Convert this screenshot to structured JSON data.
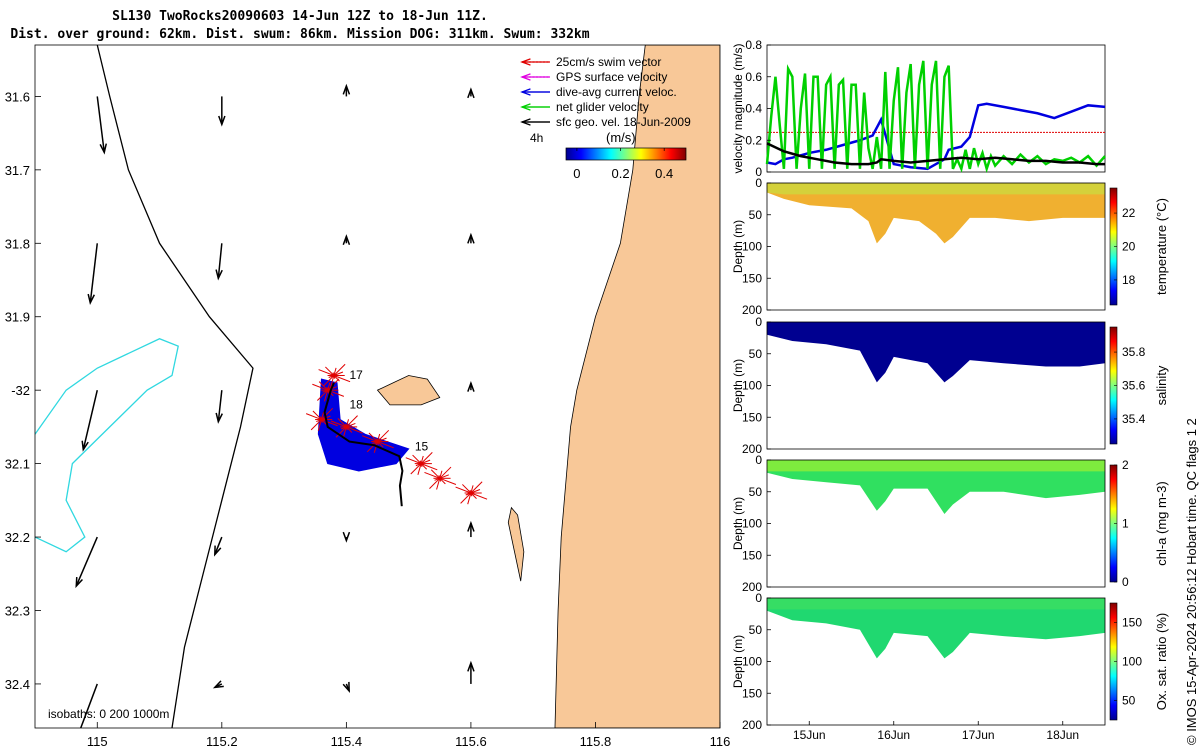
{
  "title": {
    "line1": "SL130 TwoRocks20090603 14-Jun 12Z to 18-Jun 11Z.",
    "line2": "Dist. over ground: 62km. Dist. swum: 86km. Mission DOG: 311km. Swum: 332km"
  },
  "copyright": "© IMOS 15-Apr-2024 20:56:12 Hobart time. QC flags 1  2",
  "colors": {
    "land": "#f8c898",
    "arrow": "#000000",
    "isobath0": "#000000",
    "isobath200": "#30d8e0",
    "swim": "#e00000",
    "dive_avg": "#0000e0",
    "net": "#00d000",
    "track": "#000000"
  },
  "chart_data": [
    {
      "type": "map",
      "name": "track-map",
      "xlim": [
        114.9,
        116
      ],
      "ylim": [
        -32.46,
        -31.53
      ],
      "x_ticks": [
        115,
        115.2,
        115.4,
        115.6,
        115.8,
        116
      ],
      "x_tick_labels": [
        "115",
        "115.2",
        "115.4",
        "115.6",
        "115.8",
        "116"
      ],
      "y_ticks": [
        -31.6,
        -31.7,
        -31.8,
        -31.9,
        -32.0,
        -32.1,
        -32.2,
        -32.3,
        -32.4
      ],
      "y_tick_labels": [
        "31.6",
        "31.7",
        "31.8",
        "31.9",
        "-32",
        "32.1",
        "32.2",
        "32.3",
        "32.4"
      ],
      "legend": [
        {
          "label": "25cm/s swim vector",
          "color": "#e00000",
          "style": "dotted"
        },
        {
          "label": "GPS surface velocity",
          "color": "#e000e0",
          "style": "dotted"
        },
        {
          "label": "dive-avg current veloc.",
          "color": "#0000e0",
          "style": "solid"
        },
        {
          "label": "net glider velocity",
          "color": "#00d000",
          "style": "solid"
        },
        {
          "label": "sfc geo. vel. 18-Jun-2009",
          "color": "#000000",
          "style": "solid"
        }
      ],
      "scale_label": "4h",
      "colorbar": {
        "label": "(m/s)",
        "ticks": [
          "0",
          "0.2",
          "0.4"
        ],
        "range": [
          -0.05,
          0.5
        ]
      },
      "isobaths_label": "isobaths: 0   200  1000m",
      "track": [
        [
          115.489,
          -32.158
        ],
        [
          115.486,
          -32.13
        ],
        [
          115.49,
          -32.11
        ],
        [
          115.485,
          -32.09
        ],
        [
          115.445,
          -32.075
        ],
        [
          115.405,
          -32.07
        ],
        [
          115.37,
          -32.05
        ],
        [
          115.365,
          -32.03
        ],
        [
          115.375,
          -32.0
        ],
        [
          115.38,
          -31.99
        ]
      ],
      "day_labels": [
        {
          "text": "17",
          "lon": 115.405,
          "lat": -31.985
        },
        {
          "text": "18",
          "lon": 115.405,
          "lat": -32.025
        },
        {
          "text": "15",
          "lon": 115.51,
          "lat": -32.082
        }
      ],
      "sfc_vectors": [
        {
          "lon": 115.0,
          "lat": -31.6,
          "u": 0.01,
          "v": -0.08
        },
        {
          "lon": 115.2,
          "lat": -31.6,
          "u": 0.0,
          "v": -0.04
        },
        {
          "lon": 115.4,
          "lat": -31.6,
          "u": 0.0,
          "v": 0.015
        },
        {
          "lon": 115.6,
          "lat": -31.6,
          "u": 0.0,
          "v": 0.01
        },
        {
          "lon": 115.0,
          "lat": -31.8,
          "u": -0.01,
          "v": -0.085
        },
        {
          "lon": 115.2,
          "lat": -31.8,
          "u": -0.005,
          "v": -0.05
        },
        {
          "lon": 115.4,
          "lat": -31.8,
          "u": 0.0,
          "v": 0.01
        },
        {
          "lon": 115.6,
          "lat": -31.8,
          "u": 0.0,
          "v": 0.012
        },
        {
          "lon": 115.0,
          "lat": -32.0,
          "u": -0.02,
          "v": -0.085
        },
        {
          "lon": 115.2,
          "lat": -32.0,
          "u": -0.005,
          "v": -0.045
        },
        {
          "lon": 115.4,
          "lat": -32.2,
          "u": 0.0,
          "v": -0.005
        },
        {
          "lon": 115.6,
          "lat": -32.2,
          "u": 0.0,
          "v": 0.02
        },
        {
          "lon": 115.0,
          "lat": -32.2,
          "u": -0.03,
          "v": -0.07
        },
        {
          "lon": 115.2,
          "lat": -32.2,
          "u": -0.01,
          "v": -0.025
        },
        {
          "lon": 115.4,
          "lat": -32.4,
          "u": 0.004,
          "v": -0.01
        },
        {
          "lon": 115.6,
          "lat": -32.4,
          "u": 0.0,
          "v": 0.03
        },
        {
          "lon": 115.0,
          "lat": -32.4,
          "u": -0.03,
          "v": -0.08
        },
        {
          "lon": 115.2,
          "lat": -32.4,
          "u": -0.01,
          "v": -0.005
        },
        {
          "lon": 115.6,
          "lat": -32.0,
          "u": 0.0,
          "v": 0.01
        }
      ],
      "coastline": [
        [
          115.88,
          -31.53
        ],
        [
          115.87,
          -31.6
        ],
        [
          115.86,
          -31.7
        ],
        [
          115.84,
          -31.8
        ],
        [
          115.8,
          -31.9
        ],
        [
          115.77,
          -32.0
        ],
        [
          115.76,
          -32.05
        ],
        [
          115.755,
          -32.1
        ],
        [
          115.745,
          -32.2
        ],
        [
          115.74,
          -32.3
        ],
        [
          115.735,
          -32.46
        ]
      ],
      "islands": [
        {
          "name": "rottnest",
          "points": [
            [
              115.45,
              -32.0
            ],
            [
              115.5,
              -31.98
            ],
            [
              115.53,
              -31.985
            ],
            [
              115.55,
              -32.01
            ],
            [
              115.52,
              -32.02
            ],
            [
              115.47,
              -32.02
            ]
          ]
        },
        {
          "name": "garden",
          "points": [
            [
              115.665,
              -32.16
            ],
            [
              115.675,
              -32.17
            ],
            [
              115.685,
              -32.22
            ],
            [
              115.68,
              -32.26
            ],
            [
              115.67,
              -32.22
            ],
            [
              115.66,
              -32.18
            ]
          ]
        }
      ],
      "isobath_0": [
        [
          115.0,
          -31.53
        ],
        [
          115.02,
          -31.6
        ],
        [
          115.05,
          -31.7
        ],
        [
          115.1,
          -31.8
        ],
        [
          115.18,
          -31.9
        ],
        [
          115.25,
          -31.97
        ],
        [
          115.23,
          -32.05
        ],
        [
          115.2,
          -32.15
        ],
        [
          115.17,
          -32.25
        ],
        [
          115.14,
          -32.35
        ],
        [
          115.12,
          -32.46
        ]
      ],
      "isobath_200": [
        [
          114.9,
          -32.06
        ],
        [
          114.95,
          -32.0
        ],
        [
          115.0,
          -31.97
        ],
        [
          115.05,
          -31.95
        ],
        [
          115.1,
          -31.93
        ],
        [
          115.13,
          -31.94
        ],
        [
          115.12,
          -31.98
        ],
        [
          115.08,
          -32.0
        ],
        [
          115.02,
          -32.05
        ],
        [
          114.96,
          -32.1
        ],
        [
          114.95,
          -32.15
        ],
        [
          114.98,
          -32.2
        ],
        [
          114.95,
          -32.22
        ],
        [
          114.9,
          -32.2
        ]
      ]
    },
    {
      "type": "line",
      "name": "velocity-magnitude",
      "ylabel": "velocity magnitude (m/s)",
      "ylim": [
        0,
        0.8
      ],
      "y_ticks": [
        0,
        0.2,
        0.4,
        0.6,
        0.8
      ],
      "y_tick_labels": [
        "0",
        "0.2",
        "0.4",
        "0.6",
        "0.8"
      ],
      "xlim": [
        14.5,
        18.5
      ],
      "series": [
        {
          "name": "swim vector",
          "color": "#e00000",
          "style": "dotted",
          "x": [
            14.5,
            18.5
          ],
          "y": [
            0.25,
            0.25
          ]
        },
        {
          "name": "dive-avg current",
          "color": "#0000e0",
          "x": [
            14.5,
            14.6,
            14.7,
            14.8,
            15.0,
            15.2,
            15.4,
            15.6,
            15.75,
            15.8,
            15.85,
            16.0,
            16.2,
            16.4,
            16.5,
            16.6,
            16.65,
            16.8,
            16.9,
            17.0,
            17.1,
            17.3,
            17.5,
            17.7,
            17.9,
            18.1,
            18.3,
            18.5
          ],
          "y": [
            0.06,
            0.05,
            0.08,
            0.09,
            0.12,
            0.14,
            0.17,
            0.2,
            0.23,
            0.28,
            0.33,
            0.05,
            0.03,
            0.02,
            0.05,
            0.08,
            0.14,
            0.16,
            0.22,
            0.42,
            0.43,
            0.41,
            0.39,
            0.37,
            0.34,
            0.38,
            0.42,
            0.41
          ]
        },
        {
          "name": "net glider velocity",
          "color": "#00d000",
          "x": [
            14.5,
            14.55,
            14.6,
            14.65,
            14.7,
            14.75,
            14.8,
            14.85,
            14.9,
            14.95,
            15.0,
            15.05,
            15.1,
            15.15,
            15.2,
            15.25,
            15.3,
            15.35,
            15.4,
            15.45,
            15.5,
            15.55,
            15.6,
            15.65,
            15.7,
            15.75,
            15.8,
            15.85,
            15.9,
            15.95,
            16.0,
            16.05,
            16.1,
            16.15,
            16.2,
            16.25,
            16.3,
            16.35,
            16.4,
            16.45,
            16.5,
            16.55,
            16.6,
            16.65,
            16.7,
            16.75,
            16.8,
            16.85,
            16.9,
            16.95,
            17.0,
            17.05,
            17.1,
            17.15,
            17.2,
            17.3,
            17.4,
            17.5,
            17.6,
            17.7,
            17.8,
            17.9,
            18.0,
            18.1,
            18.2,
            18.3,
            18.4,
            18.5
          ],
          "y": [
            0.05,
            0.35,
            0.6,
            0.3,
            0.02,
            0.65,
            0.6,
            0.02,
            0.4,
            0.62,
            0.02,
            0.6,
            0.6,
            0.02,
            0.55,
            0.6,
            0.02,
            0.55,
            0.58,
            0.02,
            0.55,
            0.55,
            0.02,
            0.5,
            0.15,
            0.02,
            0.22,
            0.02,
            0.63,
            0.02,
            0.45,
            0.66,
            0.02,
            0.5,
            0.68,
            0.02,
            0.55,
            0.7,
            0.02,
            0.55,
            0.7,
            0.02,
            0.6,
            0.67,
            0.02,
            0.08,
            0.02,
            0.14,
            0.02,
            0.15,
            0.05,
            0.12,
            0.02,
            0.1,
            0.04,
            0.1,
            0.05,
            0.11,
            0.06,
            0.1,
            0.05,
            0.08,
            0.07,
            0.09,
            0.06,
            0.1,
            0.04,
            0.1
          ]
        },
        {
          "name": "sfc geo. vel.",
          "color": "#000000",
          "x": [
            14.5,
            14.7,
            14.9,
            15.1,
            15.3,
            15.5,
            15.7,
            15.8,
            15.85,
            16.0,
            16.2,
            16.4,
            16.6,
            16.8,
            17.0,
            17.2,
            17.4,
            17.6,
            17.8,
            18.0,
            18.2,
            18.4,
            18.5
          ],
          "y": [
            0.18,
            0.13,
            0.1,
            0.08,
            0.06,
            0.05,
            0.05,
            0.06,
            0.08,
            0.07,
            0.06,
            0.07,
            0.08,
            0.09,
            0.08,
            0.09,
            0.08,
            0.07,
            0.07,
            0.06,
            0.06,
            0.05,
            0.05
          ]
        }
      ]
    },
    {
      "type": "heatmap",
      "name": "temperature-section",
      "ylabel": "Depth (m)",
      "ylim": [
        0,
        200
      ],
      "y_ticks": [
        0,
        50,
        100,
        150,
        200
      ],
      "y_tick_labels": [
        "0",
        "50",
        "100",
        "150",
        "200"
      ],
      "xlim": [
        14.5,
        18.5
      ],
      "colorbar_label": "temperature (°C)",
      "colorbar_ticks": [
        "18",
        "20",
        "22"
      ],
      "colorbar_range": [
        16.5,
        23.5
      ],
      "value_description": "mostly 21-22 °C with cooler 19-20 °C water near surface at 14.5-14.9 Jun and above 18 Jun",
      "bottom_profile": [
        [
          14.5,
          15
        ],
        [
          14.7,
          25
        ],
        [
          15.0,
          35
        ],
        [
          15.5,
          40
        ],
        [
          15.7,
          60
        ],
        [
          15.8,
          95
        ],
        [
          15.9,
          80
        ],
        [
          16.0,
          55
        ],
        [
          16.3,
          60
        ],
        [
          16.5,
          80
        ],
        [
          16.6,
          95
        ],
        [
          16.7,
          85
        ],
        [
          16.9,
          55
        ],
        [
          17.2,
          55
        ],
        [
          17.6,
          60
        ],
        [
          18.0,
          55
        ],
        [
          18.5,
          55
        ]
      ]
    },
    {
      "type": "heatmap",
      "name": "salinity-section",
      "ylabel": "Depth (m)",
      "ylim": [
        0,
        200
      ],
      "y_ticks": [
        0,
        50,
        100,
        150,
        200
      ],
      "y_tick_labels": [
        "0",
        "50",
        "100",
        "150",
        "200"
      ],
      "xlim": [
        14.5,
        18.5
      ],
      "colorbar_label": "salinity",
      "colorbar_ticks": [
        "35.4",
        "35.6",
        "35.8"
      ],
      "colorbar_range": [
        35.25,
        35.95
      ],
      "value_description": "uniformly about 35.25 throughout",
      "bottom_profile": [
        [
          14.5,
          20
        ],
        [
          14.8,
          30
        ],
        [
          15.2,
          35
        ],
        [
          15.6,
          45
        ],
        [
          15.8,
          95
        ],
        [
          15.9,
          80
        ],
        [
          16.0,
          55
        ],
        [
          16.4,
          65
        ],
        [
          16.6,
          95
        ],
        [
          16.7,
          85
        ],
        [
          16.9,
          60
        ],
        [
          17.3,
          65
        ],
        [
          17.8,
          70
        ],
        [
          18.2,
          70
        ],
        [
          18.5,
          65
        ]
      ]
    },
    {
      "type": "heatmap",
      "name": "chl-a-section",
      "ylabel": "Depth (m)",
      "ylim": [
        0,
        200
      ],
      "y_ticks": [
        0,
        50,
        100,
        150,
        200
      ],
      "y_tick_labels": [
        "0",
        "50",
        "100",
        "150",
        "200"
      ],
      "xlim": [
        14.5,
        18.5
      ],
      "colorbar_label": "chl-a (mg m-3)",
      "colorbar_ticks": [
        "0",
        "1",
        "2"
      ],
      "colorbar_range": [
        0,
        2
      ],
      "value_description": "about 1 mg m-3 in upper layer with higher patches 1.5-2 near 17.0-17.6 Jun; lower 0.5 in deep troughs",
      "bottom_profile": [
        [
          14.5,
          20
        ],
        [
          14.8,
          30
        ],
        [
          15.2,
          35
        ],
        [
          15.6,
          40
        ],
        [
          15.8,
          80
        ],
        [
          15.9,
          65
        ],
        [
          16.0,
          45
        ],
        [
          16.4,
          45
        ],
        [
          16.6,
          85
        ],
        [
          16.7,
          70
        ],
        [
          16.9,
          50
        ],
        [
          17.3,
          50
        ],
        [
          17.8,
          60
        ],
        [
          18.2,
          55
        ],
        [
          18.5,
          50
        ]
      ]
    },
    {
      "type": "heatmap",
      "name": "oxygen-section",
      "ylabel": "Depth (m)",
      "ylim": [
        0,
        200
      ],
      "y_ticks": [
        0,
        50,
        100,
        150,
        200
      ],
      "y_tick_labels": [
        "0",
        "50",
        "100",
        "150",
        "200"
      ],
      "xlim": [
        14.5,
        18.5
      ],
      "x_ticks": [
        15,
        16,
        17,
        18
      ],
      "x_tick_labels": [
        "15Jun",
        "16Jun",
        "17Jun",
        "18Jun"
      ],
      "colorbar_label": "Ox. sat. ratio (%)",
      "colorbar_ticks": [
        "50",
        "100",
        "150"
      ],
      "colorbar_range": [
        25,
        175
      ],
      "value_description": "uniformly about 100-105 % throughout",
      "bottom_profile": [
        [
          14.5,
          20
        ],
        [
          14.8,
          35
        ],
        [
          15.2,
          40
        ],
        [
          15.6,
          50
        ],
        [
          15.8,
          95
        ],
        [
          15.9,
          80
        ],
        [
          16.0,
          55
        ],
        [
          16.4,
          60
        ],
        [
          16.6,
          95
        ],
        [
          16.7,
          85
        ],
        [
          16.9,
          55
        ],
        [
          17.3,
          60
        ],
        [
          17.8,
          65
        ],
        [
          18.2,
          60
        ],
        [
          18.5,
          55
        ]
      ]
    }
  ]
}
